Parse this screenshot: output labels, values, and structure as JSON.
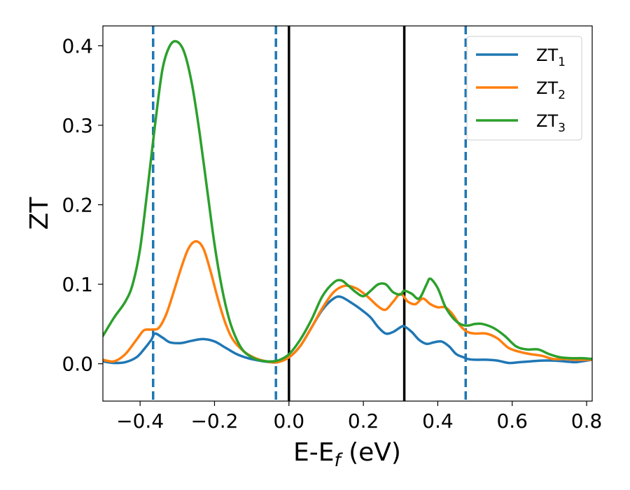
{
  "chart_data": {
    "type": "line",
    "title": "",
    "xlabel": {
      "main": "E-E",
      "sub": "f",
      "unit": " (eV)"
    },
    "ylabel": "ZT",
    "xlim": [
      -0.5,
      0.815
    ],
    "ylim": [
      -0.047,
      0.425
    ],
    "xticks": [
      -0.4,
      -0.2,
      0.0,
      0.2,
      0.4,
      0.6,
      0.8
    ],
    "xtick_labels": [
      "−0.4",
      "−0.2",
      "0.0",
      "0.2",
      "0.4",
      "0.6",
      "0.8"
    ],
    "yticks": [
      0.0,
      0.1,
      0.2,
      0.3,
      0.4
    ],
    "ytick_labels": [
      "0.0",
      "0.1",
      "0.2",
      "0.3",
      "0.4"
    ],
    "grid": false,
    "legend_position": "top-right",
    "vlines": [
      {
        "x": -0.365,
        "style": "dashed",
        "color": "#1f77b4"
      },
      {
        "x": -0.035,
        "style": "dashed",
        "color": "#1f77b4"
      },
      {
        "x": 0.0,
        "style": "solid",
        "color": "#000000"
      },
      {
        "x": 0.31,
        "style": "solid",
        "color": "#000000"
      },
      {
        "x": 0.475,
        "style": "dashed",
        "color": "#1f77b4"
      }
    ],
    "series": [
      {
        "name": "ZT",
        "sub": "1",
        "color": "#1f77b4",
        "x": [
          -0.5,
          -0.47,
          -0.44,
          -0.41,
          -0.39,
          -0.37,
          -0.36,
          -0.34,
          -0.32,
          -0.29,
          -0.26,
          -0.23,
          -0.2,
          -0.17,
          -0.14,
          -0.11,
          -0.08,
          -0.05,
          -0.03,
          0.0,
          0.03,
          0.06,
          0.09,
          0.12,
          0.14,
          0.17,
          0.2,
          0.22,
          0.24,
          0.26,
          0.28,
          0.3,
          0.31,
          0.33,
          0.35,
          0.37,
          0.39,
          0.41,
          0.43,
          0.45,
          0.47,
          0.48,
          0.5,
          0.53,
          0.56,
          0.59,
          0.62,
          0.65,
          0.68,
          0.71,
          0.74,
          0.77,
          0.8,
          0.815
        ],
        "y": [
          0.003,
          0.001,
          0.002,
          0.008,
          0.018,
          0.03,
          0.038,
          0.033,
          0.027,
          0.026,
          0.029,
          0.031,
          0.028,
          0.02,
          0.012,
          0.007,
          0.004,
          0.002,
          0.002,
          0.008,
          0.022,
          0.045,
          0.068,
          0.082,
          0.084,
          0.076,
          0.066,
          0.058,
          0.046,
          0.038,
          0.04,
          0.046,
          0.047,
          0.04,
          0.03,
          0.025,
          0.027,
          0.028,
          0.022,
          0.012,
          0.008,
          0.006,
          0.005,
          0.005,
          0.004,
          0.001,
          0.002,
          0.003,
          0.004,
          0.004,
          0.003,
          0.002,
          0.004,
          0.005
        ]
      },
      {
        "name": "ZT",
        "sub": "2",
        "color": "#ff7f0e",
        "x": [
          -0.5,
          -0.47,
          -0.44,
          -0.41,
          -0.39,
          -0.37,
          -0.35,
          -0.33,
          -0.31,
          -0.29,
          -0.27,
          -0.25,
          -0.23,
          -0.21,
          -0.19,
          -0.17,
          -0.15,
          -0.12,
          -0.09,
          -0.06,
          -0.03,
          0.0,
          0.03,
          0.06,
          0.09,
          0.12,
          0.15,
          0.18,
          0.21,
          0.24,
          0.26,
          0.28,
          0.3,
          0.32,
          0.34,
          0.36,
          0.38,
          0.4,
          0.42,
          0.44,
          0.46,
          0.48,
          0.5,
          0.53,
          0.56,
          0.59,
          0.62,
          0.65,
          0.68,
          0.71,
          0.74,
          0.77,
          0.8,
          0.815
        ],
        "y": [
          0.005,
          0.003,
          0.012,
          0.03,
          0.042,
          0.043,
          0.045,
          0.062,
          0.09,
          0.12,
          0.145,
          0.154,
          0.145,
          0.115,
          0.08,
          0.05,
          0.03,
          0.015,
          0.007,
          0.003,
          0.002,
          0.008,
          0.022,
          0.045,
          0.07,
          0.09,
          0.098,
          0.095,
          0.085,
          0.072,
          0.068,
          0.078,
          0.088,
          0.078,
          0.075,
          0.082,
          0.075,
          0.071,
          0.071,
          0.062,
          0.048,
          0.04,
          0.038,
          0.038,
          0.032,
          0.02,
          0.015,
          0.012,
          0.01,
          0.006,
          0.006,
          0.005,
          0.005,
          0.005
        ]
      },
      {
        "name": "ZT",
        "sub": "3",
        "color": "#2ca02c",
        "x": [
          -0.5,
          -0.47,
          -0.44,
          -0.42,
          -0.4,
          -0.38,
          -0.36,
          -0.34,
          -0.32,
          -0.3,
          -0.28,
          -0.26,
          -0.24,
          -0.22,
          -0.2,
          -0.18,
          -0.16,
          -0.14,
          -0.12,
          -0.09,
          -0.06,
          -0.03,
          0.0,
          0.03,
          0.06,
          0.09,
          0.12,
          0.14,
          0.16,
          0.18,
          0.2,
          0.22,
          0.24,
          0.26,
          0.28,
          0.3,
          0.31,
          0.33,
          0.35,
          0.37,
          0.38,
          0.4,
          0.42,
          0.44,
          0.46,
          0.48,
          0.5,
          0.52,
          0.55,
          0.58,
          0.61,
          0.64,
          0.67,
          0.7,
          0.73,
          0.76,
          0.79,
          0.815
        ],
        "y": [
          0.035,
          0.058,
          0.078,
          0.1,
          0.145,
          0.22,
          0.3,
          0.37,
          0.4,
          0.405,
          0.39,
          0.35,
          0.29,
          0.22,
          0.15,
          0.095,
          0.055,
          0.03,
          0.015,
          0.006,
          0.003,
          0.004,
          0.012,
          0.03,
          0.055,
          0.085,
          0.102,
          0.105,
          0.098,
          0.09,
          0.085,
          0.092,
          0.1,
          0.1,
          0.09,
          0.087,
          0.092,
          0.088,
          0.082,
          0.1,
          0.107,
          0.095,
          0.072,
          0.058,
          0.05,
          0.048,
          0.05,
          0.05,
          0.045,
          0.035,
          0.022,
          0.018,
          0.018,
          0.012,
          0.008,
          0.007,
          0.007,
          0.006
        ]
      }
    ]
  },
  "colors": {
    "zt1": "#1f77b4",
    "zt2": "#ff7f0e",
    "zt3": "#2ca02c",
    "axis": "#000000"
  }
}
